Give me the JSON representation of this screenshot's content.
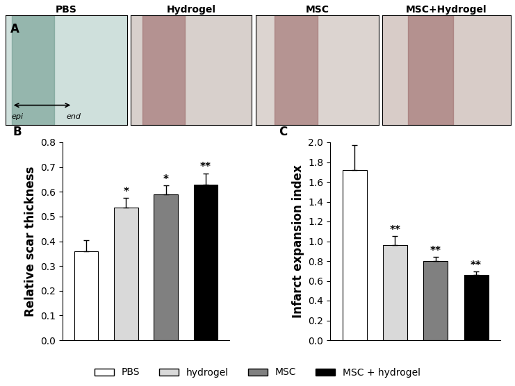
{
  "panel_a": {
    "label": "A",
    "titles": [
      "PBS",
      "Hydrogel",
      "MSC",
      "MSC+Hydrogel"
    ],
    "annotations": [
      "epi",
      "end"
    ]
  },
  "chart_data": [
    {
      "type": "bar",
      "title": "B",
      "y_label": "Relative scar thickness",
      "categories": [
        "PBS",
        "hydrogel",
        "MSC",
        "MSC + hydrogel"
      ],
      "values": [
        0.36,
        0.535,
        0.59,
        0.63
      ],
      "errors": [
        0.045,
        0.04,
        0.035,
        0.045
      ],
      "annotations": [
        null,
        "*",
        "*",
        "**"
      ],
      "colors": [
        "#ffffff",
        "#d9d9d9",
        "#808080",
        "#000000"
      ],
      "ylim": [
        0.0,
        0.8
      ],
      "yticks": [
        0.0,
        0.1,
        0.2,
        0.3,
        0.4,
        0.5,
        0.6,
        0.7,
        0.8
      ],
      "tick_labels": "y",
      "legend": "lower center"
    },
    {
      "type": "bar",
      "title": "C",
      "y_label": "Infarct expansion index",
      "categories": [
        "PBS",
        "hydrogel",
        "MSC",
        "MSC + hydrogel"
      ],
      "values": [
        1.72,
        0.96,
        0.8,
        0.66
      ],
      "errors": [
        0.25,
        0.09,
        0.04,
        0.035
      ],
      "annotations": [
        null,
        "**",
        "**",
        "**"
      ],
      "colors": [
        "#ffffff",
        "#d9d9d9",
        "#808080",
        "#000000"
      ],
      "ylim": [
        0.0,
        2.0
      ],
      "yticks": [
        0.0,
        0.2,
        0.4,
        0.6,
        0.8,
        1.0,
        1.2,
        1.4,
        1.6,
        1.8,
        2.0
      ],
      "tick_labels": "y"
    }
  ]
}
